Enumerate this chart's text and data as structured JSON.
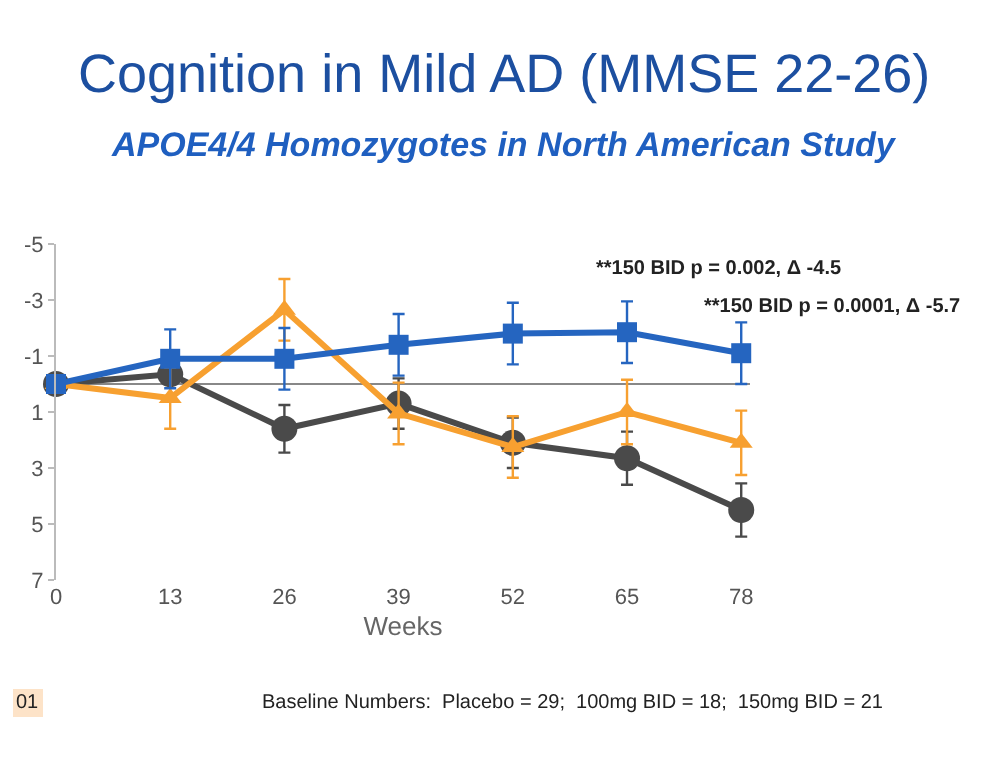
{
  "chart_data": {
    "type": "line",
    "title": "Cognition in Mild AD (MMSE 22-26)",
    "subtitle": "APOE4/4 Homozygotes in North American Study",
    "xlabel": "Weeks",
    "x": [
      0,
      13,
      26,
      39,
      52,
      65,
      78
    ],
    "xlim": [
      0,
      79
    ],
    "xticks": [
      0,
      13,
      26,
      39,
      52,
      65,
      78
    ],
    "ylim": [
      7,
      -5
    ],
    "yticks": [
      -5,
      -3,
      -1,
      1,
      3,
      5,
      7
    ],
    "series": [
      {
        "color": "#4a4a4a",
        "marker": "circle",
        "values": [
          0,
          -0.35,
          1.6,
          0.7,
          2.1,
          2.65,
          4.5
        ],
        "errors": [
          null,
          null,
          0.85,
          0.9,
          0.9,
          0.95,
          0.95
        ]
      },
      {
        "color": "#f7a030",
        "marker": "triangle",
        "values": [
          0,
          0.5,
          -2.65,
          1.05,
          2.25,
          1.0,
          2.1
        ],
        "errors": [
          null,
          1.1,
          1.1,
          1.1,
          1.1,
          1.15,
          1.15
        ]
      },
      {
        "color": "#2565c0",
        "marker": "square",
        "values": [
          0,
          -0.9,
          -0.9,
          -1.4,
          -1.8,
          -1.85,
          -1.1
        ],
        "errors": [
          null,
          1.05,
          1.1,
          1.1,
          1.1,
          1.1,
          1.1
        ]
      }
    ],
    "ref_lines": [
      {
        "axis": "y",
        "value": 0,
        "color": "#888888"
      }
    ],
    "annotations": [
      "**150 BID p = 0.002, Δ -4.5",
      "**150 BID p = 0.0001, Δ -5.7",
      "Baseline Numbers:  Placebo = 29;  100mg BID = 18;  150mg BID = 21",
      "01"
    ],
    "grid": false,
    "line_style": "solid"
  }
}
